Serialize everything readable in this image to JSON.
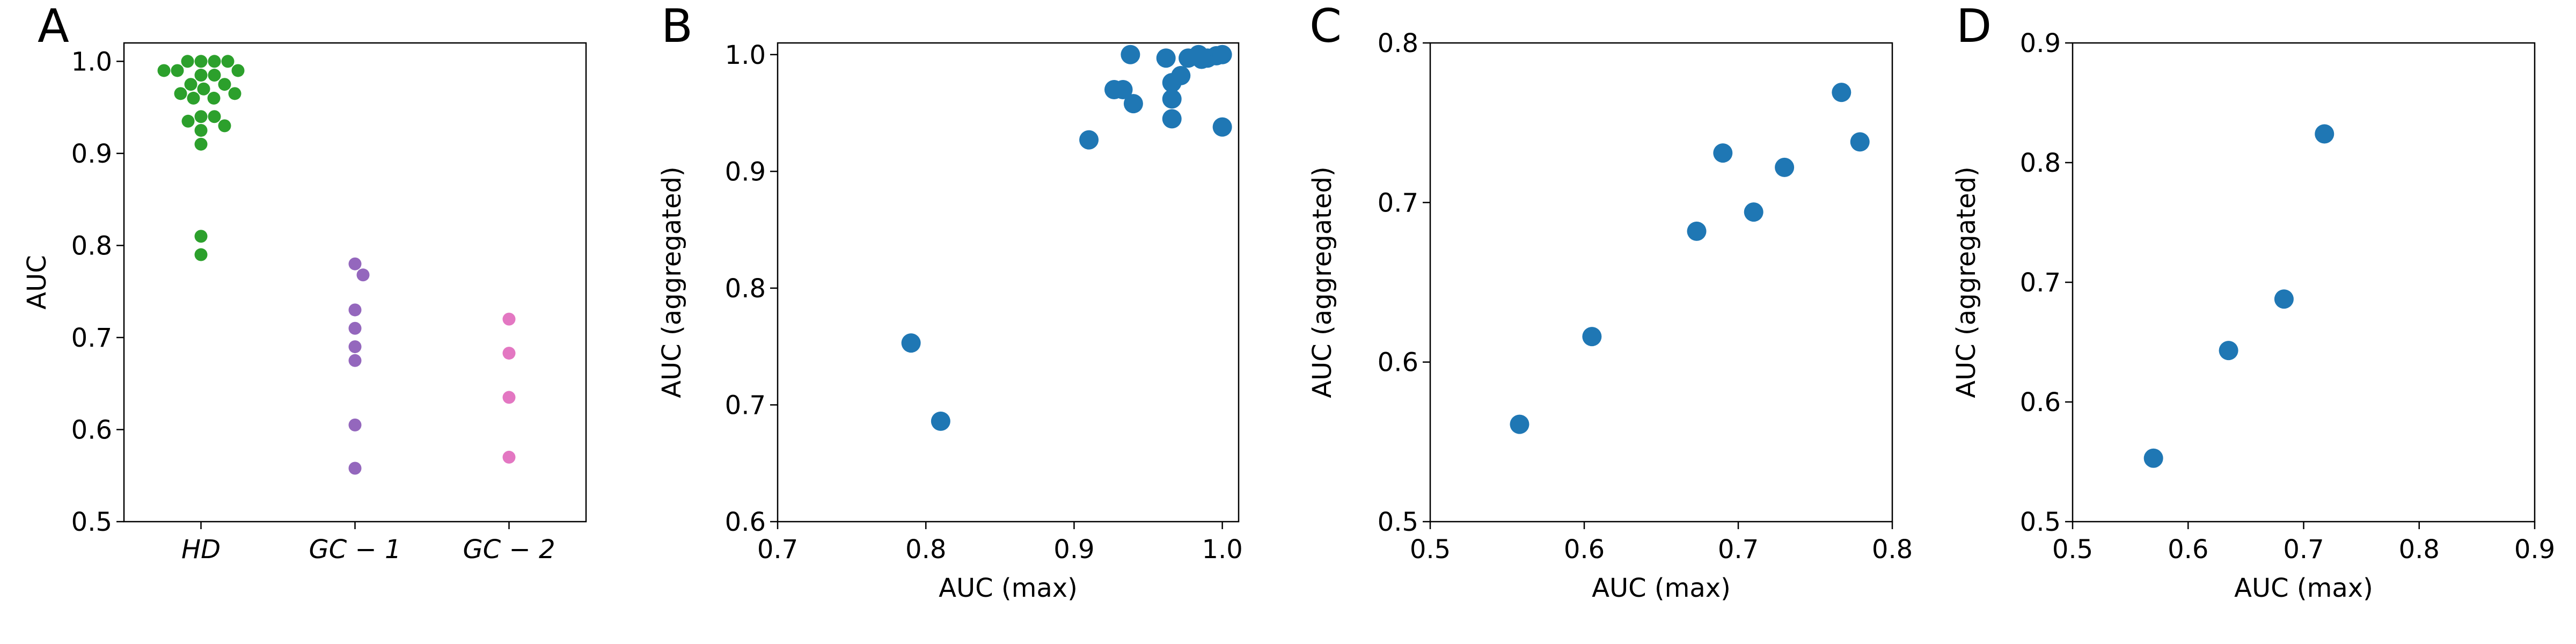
{
  "chart_data": [
    {
      "type": "swarm",
      "panel_label": "A",
      "ylabel": "AUC",
      "categories": [
        "HD",
        "GC − 1",
        "GC − 2"
      ],
      "values": [
        [
          1.0,
          1.0,
          1.0,
          1.0,
          0.99,
          0.99,
          0.99,
          0.985,
          0.985,
          0.975,
          0.975,
          0.97,
          0.965,
          0.965,
          0.96,
          0.96,
          0.94,
          0.94,
          0.935,
          0.93,
          0.925,
          0.91,
          0.81,
          0.79
        ],
        [
          0.78,
          0.768,
          0.73,
          0.71,
          0.69,
          0.675,
          0.605,
          0.558
        ],
        [
          0.72,
          0.683,
          0.635,
          0.57
        ]
      ],
      "colors": [
        "#2ca02c",
        "#9467bd",
        "#e377c2"
      ],
      "ylim": [
        0.5,
        1.02
      ],
      "yticks": [
        0.5,
        0.6,
        0.7,
        0.8,
        0.9,
        {
          "value": 1,
          "label": "1.0"
        }
      ]
    },
    {
      "type": "scatter",
      "panel_label": "B",
      "xlabel": "AUC (max)",
      "ylabel": "AUC (aggregated)",
      "color": "#1f77b4",
      "x": [
        0.938,
        0.927,
        0.933,
        0.94,
        0.91,
        0.962,
        0.966,
        0.966,
        0.966,
        0.972,
        0.977,
        0.984,
        0.99,
        0.996,
        1.0,
        1.0,
        0.986,
        0.79,
        0.81
      ],
      "values": [
        1.0,
        0.97,
        0.97,
        0.958,
        0.927,
        0.997,
        0.976,
        0.962,
        0.945,
        0.982,
        0.997,
        1.0,
        0.997,
        0.999,
        1.0,
        0.938,
        0.996,
        0.753,
        0.686
      ],
      "xlim": [
        0.7,
        1.011
      ],
      "xticks": [
        0.7,
        0.8,
        0.9,
        {
          "value": 1,
          "label": "1.0"
        }
      ],
      "ylim": [
        0.6,
        1.01
      ],
      "yticks": [
        0.6,
        0.7,
        0.8,
        0.9,
        {
          "value": 1,
          "label": "1.0"
        }
      ]
    },
    {
      "type": "scatter",
      "panel_label": "C",
      "xlabel": "AUC (max)",
      "ylabel": "AUC (aggregated)",
      "color": "#1f77b4",
      "x": [
        0.558,
        0.605,
        0.673,
        0.69,
        0.71,
        0.73,
        0.767,
        0.779
      ],
      "values": [
        0.561,
        0.616,
        0.682,
        0.731,
        0.694,
        0.722,
        0.769,
        0.738
      ],
      "xlim": [
        0.5,
        0.8
      ],
      "xticks": [
        0.5,
        0.6,
        0.7,
        0.8
      ],
      "ylim": [
        0.5,
        0.8
      ],
      "yticks": [
        0.5,
        0.6,
        0.7,
        0.8
      ]
    },
    {
      "type": "scatter",
      "panel_label": "D",
      "xlabel": "AUC (max)",
      "ylabel": "AUC (aggregated)",
      "color": "#1f77b4",
      "x": [
        0.57,
        0.635,
        0.683,
        0.718
      ],
      "values": [
        0.553,
        0.643,
        0.686,
        0.824
      ],
      "xlim": [
        0.5,
        0.9
      ],
      "xticks": [
        0.5,
        0.6,
        0.7,
        0.8,
        0.9
      ],
      "ylim": [
        0.5,
        0.9
      ],
      "yticks": [
        0.5,
        0.6,
        0.7,
        0.8,
        0.9
      ]
    }
  ]
}
